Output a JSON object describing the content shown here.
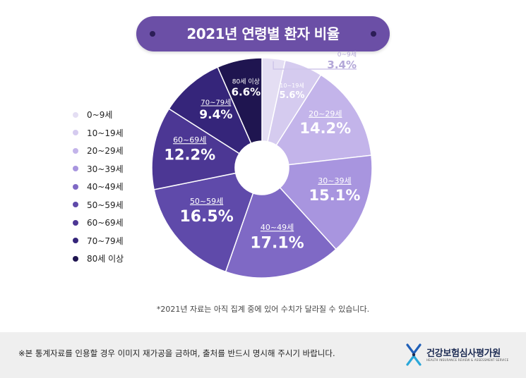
{
  "title": "2021년 연령별 환자 비율",
  "chart_data": {
    "type": "pie",
    "title": "2021년 연령별 환자 비율",
    "unit": "%",
    "slices": [
      {
        "label": "0~9세",
        "value": 3.4,
        "value_text": "3.4%",
        "color": "#e4def3"
      },
      {
        "label": "10~19세",
        "value": 5.6,
        "value_text": "5.6%",
        "color": "#d5cbef"
      },
      {
        "label": "20~29세",
        "value": 14.2,
        "value_text": "14.2%",
        "color": "#c3b4ea"
      },
      {
        "label": "30~39세",
        "value": 15.1,
        "value_text": "15.1%",
        "color": "#a895df"
      },
      {
        "label": "40~49세",
        "value": 17.1,
        "value_text": "17.1%",
        "color": "#7f69c5"
      },
      {
        "label": "50~59세",
        "value": 16.5,
        "value_text": "16.5%",
        "color": "#5f4aaa"
      },
      {
        "label": "60~69세",
        "value": 12.2,
        "value_text": "12.2%",
        "color": "#4c3794"
      },
      {
        "label": "70~79세",
        "value": 9.4,
        "value_text": "9.4%",
        "color": "#35257a"
      },
      {
        "label": "80세 이상",
        "value": 6.6,
        "value_text": "6.6%",
        "color": "#1f1550"
      }
    ]
  },
  "legend": [
    {
      "label": "0~9세",
      "color": "#e4def3"
    },
    {
      "label": "10~19세",
      "color": "#d5cbef"
    },
    {
      "label": "20~29세",
      "color": "#c3b4ea"
    },
    {
      "label": "30~39세",
      "color": "#a895df"
    },
    {
      "label": "40~49세",
      "color": "#7f69c5"
    },
    {
      "label": "50~59세",
      "color": "#5f4aaa"
    },
    {
      "label": "60~69세",
      "color": "#4c3794"
    },
    {
      "label": "70~79세",
      "color": "#35257a"
    },
    {
      "label": "80세 이상",
      "color": "#1f1550"
    }
  ],
  "footnote": "*2021년 자료는 아직 집계 중에 있어 수치가 달라질 수 있습니다.",
  "footer": {
    "notice": "※본 통계자료를 인용할 경우 이미지 재가공을 금하며, 출처를 반드시 명시해 주시기 바랍니다.",
    "org_name": "건강보험심사평가원",
    "org_name_en": "HEALTH INSURANCE REVIEW & ASSESSMENT SERVICE"
  },
  "colors": {
    "title_bg": "#6b4fa6",
    "title_dot": "#2c1d57",
    "footer_bg": "#efefef",
    "brand_blue": "#1b2a52"
  }
}
